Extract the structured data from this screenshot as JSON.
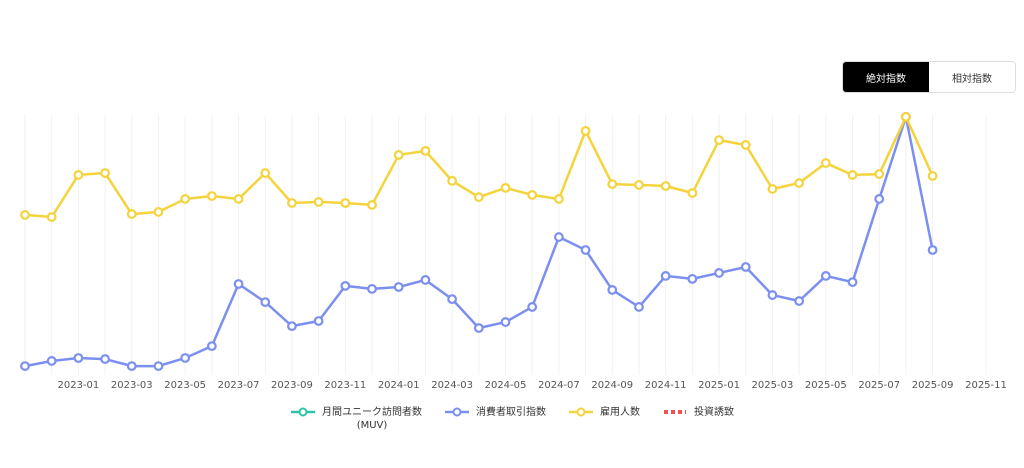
{
  "controls": {
    "options": [
      "絶対指数",
      "相対指数"
    ],
    "selected": 0
  },
  "chart_data": {
    "type": "line",
    "x": [
      "2022-11",
      "2022-12",
      "2023-01",
      "2023-02",
      "2023-03",
      "2023-04",
      "2023-05",
      "2023-06",
      "2023-07",
      "2023-08",
      "2023-09",
      "2023-10",
      "2023-11",
      "2023-12",
      "2024-01",
      "2024-02",
      "2024-03",
      "2024-04",
      "2024-05",
      "2024-06",
      "2024-07",
      "2024-08",
      "2024-09",
      "2024-10",
      "2024-11",
      "2024-12",
      "2025-01",
      "2025-02",
      "2025-03",
      "2025-04",
      "2025-05",
      "2025-06",
      "2025-07",
      "2025-08",
      "2025-09"
    ],
    "xlim": [
      "2022-11",
      "2025-11"
    ],
    "xticks": [
      "2023-01",
      "2023-03",
      "2023-05",
      "2023-07",
      "2023-09",
      "2023-11",
      "2024-01",
      "2024-03",
      "2024-05",
      "2024-07",
      "2024-09",
      "2024-11",
      "2025-01",
      "2025-03",
      "2025-05",
      "2025-07",
      "2025-09",
      "2025-11"
    ],
    "ylim": [
      0,
      100
    ],
    "grid": true,
    "series": [
      {
        "name": "月間ユニーク訪問者数\n(MUV)",
        "color": "#2cc6a6",
        "values": [
          null,
          null,
          null,
          null,
          null,
          null,
          null,
          null,
          null,
          null,
          null,
          null,
          null,
          null,
          null,
          null,
          null,
          null,
          null,
          null,
          null,
          null,
          null,
          null,
          null,
          null,
          null,
          null,
          null,
          null,
          null,
          null,
          null,
          null,
          null
        ]
      },
      {
        "name": "消費者取引指数",
        "color": "#7b8ff0",
        "values": [
          3.3,
          5.2,
          6.3,
          5.9,
          3.3,
          3.3,
          6.3,
          10.7,
          33.7,
          27.0,
          18.1,
          20.0,
          33.0,
          31.9,
          32.6,
          35.2,
          28.1,
          17.4,
          19.6,
          25.2,
          51.1,
          46.3,
          31.5,
          25.2,
          36.7,
          35.6,
          37.8,
          40.0,
          29.6,
          27.4,
          36.7,
          34.4,
          65.2,
          95.6,
          46.3
        ]
      },
      {
        "name": "雇用人数",
        "color": "#f5d33c",
        "values": [
          59.3,
          58.5,
          74.1,
          74.8,
          59.6,
          60.4,
          65.2,
          66.3,
          65.2,
          74.8,
          63.7,
          64.1,
          63.7,
          63.0,
          81.5,
          83.0,
          71.9,
          65.9,
          69.3,
          66.7,
          65.2,
          90.4,
          70.7,
          70.4,
          70.0,
          67.4,
          87.0,
          85.2,
          68.9,
          71.1,
          78.5,
          74.1,
          74.4,
          95.6,
          73.7
        ]
      },
      {
        "name": "投資誘致",
        "color": "#ef5350",
        "values": [
          null,
          null,
          null,
          null,
          null,
          null,
          null,
          null,
          null,
          null,
          null,
          null,
          null,
          null,
          null,
          null,
          null,
          null,
          null,
          null,
          null,
          null,
          null,
          null,
          null,
          null,
          null,
          null,
          null,
          null,
          null,
          null,
          null,
          null,
          null
        ]
      }
    ]
  }
}
